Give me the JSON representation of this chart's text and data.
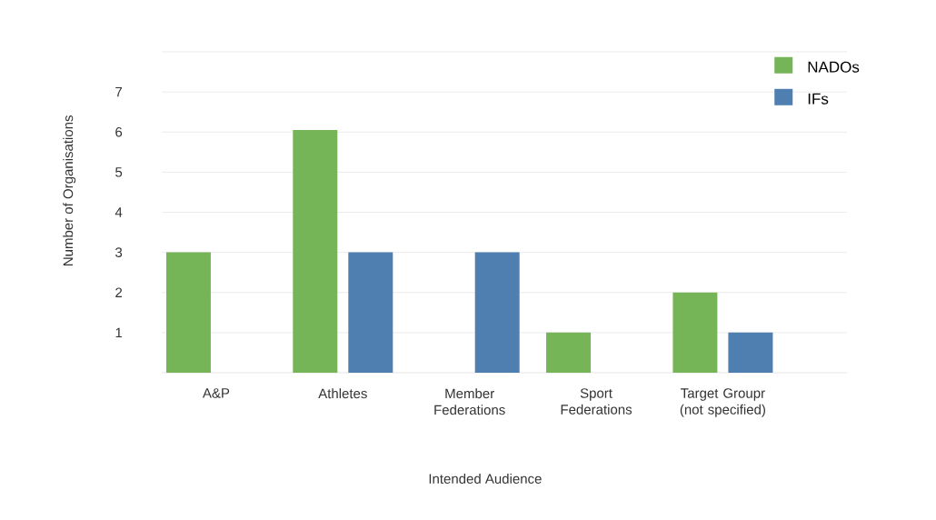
{
  "chart_data": {
    "type": "bar",
    "xlabel": "Intended Audience",
    "ylabel": "Number of Organisations",
    "categories": [
      "A&P",
      "Athletes",
      "Member Federations",
      "Sport Federations",
      "Target Groupr (not specified)"
    ],
    "series": [
      {
        "name": "NADOs",
        "color": "#75b457",
        "values": [
          3,
          6.05,
          null,
          1,
          2
        ]
      },
      {
        "name": "IFs",
        "color": "#4e7fb0",
        "values": [
          null,
          3,
          3,
          null,
          1
        ]
      }
    ],
    "ylim": [
      0,
      8
    ],
    "yticks": [
      1,
      2,
      3,
      4,
      5,
      6,
      7,
      {
        "value": 8,
        "label": null
      }
    ],
    "grid": "y",
    "legend": "top right"
  }
}
